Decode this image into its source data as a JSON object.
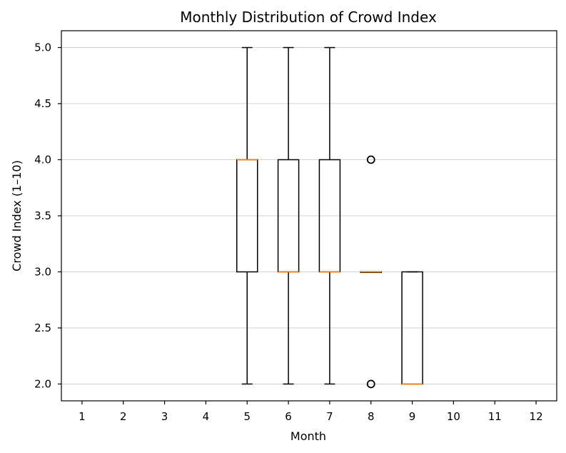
{
  "chart_data": {
    "type": "box",
    "title": "Monthly Distribution of Crowd Index",
    "xlabel": "Month",
    "ylabel": "Crowd Index (1–10)",
    "categories": [
      "1",
      "2",
      "3",
      "4",
      "5",
      "6",
      "7",
      "8",
      "9",
      "10",
      "11",
      "12"
    ],
    "ylim": [
      1.85,
      5.15
    ],
    "yticks": [
      2.0,
      2.5,
      3.0,
      3.5,
      4.0,
      4.5,
      5.0
    ],
    "ytick_labels": [
      "2.0",
      "2.5",
      "3.0",
      "3.5",
      "4.0",
      "4.5",
      "5.0"
    ],
    "grid": "horizontal",
    "series": [
      {
        "category": "5",
        "whisker_low": 2.0,
        "q1": 3.0,
        "median": 4.0,
        "q3": 4.0,
        "whisker_high": 5.0,
        "outliers": []
      },
      {
        "category": "6",
        "whisker_low": 2.0,
        "q1": 3.0,
        "median": 3.0,
        "q3": 4.0,
        "whisker_high": 5.0,
        "outliers": []
      },
      {
        "category": "7",
        "whisker_low": 2.0,
        "q1": 3.0,
        "median": 3.0,
        "q3": 4.0,
        "whisker_high": 5.0,
        "outliers": []
      },
      {
        "category": "8",
        "whisker_low": 3.0,
        "q1": 3.0,
        "median": 3.0,
        "q3": 3.0,
        "whisker_high": 3.0,
        "outliers": [
          4.0,
          2.0
        ]
      },
      {
        "category": "9",
        "whisker_low": 2.0,
        "q1": 2.0,
        "median": 2.0,
        "q3": 3.0,
        "whisker_high": 3.0,
        "outliers": []
      }
    ]
  },
  "colors": {
    "background": "#ffffff",
    "axes": "#000000",
    "grid": "#d3d3d3",
    "box": "#000000",
    "median": "#ff7f0e",
    "outlier": "#000000"
  }
}
